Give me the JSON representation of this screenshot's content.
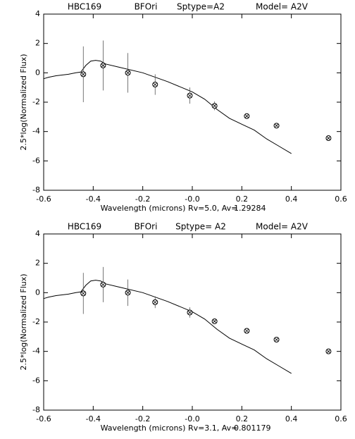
{
  "chart_data": [
    {
      "type": "scatter",
      "title_items": [
        "HBC169",
        "BFOri",
        "Sptype=A2",
        "Model= A2V"
      ],
      "x_label": "Wavelength (microns) Rv=5.0, Av=",
      "av_value": "1.29284",
      "y_label": "2.5*log(Normalized Flux)",
      "xlim": [
        -0.6,
        0.6
      ],
      "xticks": [
        -0.6,
        -0.4,
        -0.2,
        {
          "value": 0,
          "label": "-0.0"
        },
        0.2,
        0.4,
        0.6
      ],
      "ylim": [
        -8,
        4
      ],
      "yticks": [
        -8,
        -6,
        -4,
        -2,
        0,
        2,
        4
      ],
      "x": [
        -0.44,
        -0.36,
        -0.26,
        -0.15,
        -0.01,
        0.09,
        0.22,
        0.34,
        0.55
      ],
      "values": [
        -0.1,
        0.5,
        0.0,
        -0.8,
        -1.55,
        -2.25,
        -2.95,
        -3.6,
        -4.45
      ],
      "errors": [
        1.9,
        1.7,
        1.35,
        0.7,
        0.55,
        0.3,
        0,
        0,
        0
      ],
      "model_x": [
        -0.6,
        -0.58,
        -0.55,
        -0.5,
        -0.47,
        -0.45,
        -0.43,
        -0.41,
        -0.39,
        -0.37,
        -0.35,
        -0.3,
        -0.2,
        -0.1,
        0.0,
        0.05,
        0.1,
        0.15,
        0.2,
        0.25,
        0.3,
        0.35,
        0.4
      ],
      "model_y": [
        -0.4,
        -0.3,
        -0.2,
        -0.1,
        0.0,
        0.05,
        0.5,
        0.8,
        0.85,
        0.8,
        0.6,
        0.4,
        0.0,
        -0.6,
        -1.3,
        -1.8,
        -2.5,
        -3.1,
        -3.5,
        -3.9,
        -4.5,
        -5.0,
        -5.5
      ]
    },
    {
      "type": "scatter",
      "title_items": [
        "HBC169",
        "BFOri",
        "Sptype= A2",
        "Model= A2V"
      ],
      "x_label": "Wavelength (microns) Rv=3.1, Av=",
      "av_value": "0.801179",
      "y_label": "2.5*log(Normalized Flux)",
      "xlim": [
        -0.6,
        0.6
      ],
      "xticks": [
        -0.6,
        -0.4,
        -0.2,
        {
          "value": 0,
          "label": "-0.0"
        },
        0.2,
        0.4,
        0.6
      ],
      "ylim": [
        -8,
        4
      ],
      "yticks": [
        -8,
        -6,
        -4,
        -2,
        0,
        2,
        4
      ],
      "x": [
        -0.44,
        -0.36,
        -0.26,
        -0.15,
        -0.01,
        0.09,
        0.22,
        0.34,
        0.55
      ],
      "values": [
        -0.05,
        0.55,
        0.0,
        -0.65,
        -1.35,
        -1.95,
        -2.6,
        -3.2,
        -4.0
      ],
      "errors": [
        1.4,
        1.2,
        0.9,
        0.4,
        0.35,
        0,
        0,
        0,
        0
      ],
      "model_x": [
        -0.6,
        -0.58,
        -0.55,
        -0.5,
        -0.47,
        -0.45,
        -0.43,
        -0.41,
        -0.39,
        -0.37,
        -0.35,
        -0.3,
        -0.2,
        -0.1,
        0.0,
        0.05,
        0.1,
        0.15,
        0.2,
        0.25,
        0.3,
        0.35,
        0.4
      ],
      "model_y": [
        -0.4,
        -0.3,
        -0.2,
        -0.1,
        0.0,
        0.05,
        0.5,
        0.8,
        0.85,
        0.8,
        0.6,
        0.4,
        0.0,
        -0.6,
        -1.3,
        -1.8,
        -2.5,
        -3.1,
        -3.5,
        -3.9,
        -4.5,
        -5.0,
        -5.5
      ]
    }
  ]
}
